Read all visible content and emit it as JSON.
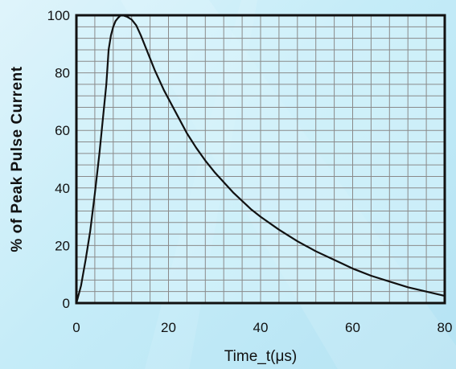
{
  "chart_data": {
    "type": "line",
    "title": "",
    "xlabel": "Time_t(μs)",
    "ylabel": "% of Peak Pulse Current",
    "xlim": [
      0,
      80
    ],
    "ylim": [
      0,
      100
    ],
    "x_ticks": [
      0,
      20,
      40,
      60,
      80
    ],
    "y_ticks": [
      0,
      20,
      40,
      60,
      80,
      100
    ],
    "x_tick_labels": [
      "0",
      "20",
      "40",
      "60",
      "80"
    ],
    "y_tick_labels": [
      "0",
      "20",
      "40",
      "60",
      "80",
      "100"
    ],
    "grid": true,
    "colors": {
      "curve": "#111111",
      "grid": "#8a8a8a",
      "background": "#c5ecf8"
    },
    "series": [
      {
        "x": [
          0,
          1,
          2,
          3,
          4,
          5,
          6,
          6.5,
          7,
          7.5,
          8,
          8.5,
          9,
          9.5,
          10,
          11,
          12,
          13,
          14,
          15,
          16,
          17,
          18,
          19,
          20,
          22,
          24,
          26,
          28,
          30,
          32,
          34,
          36,
          38,
          40,
          44,
          48,
          52,
          56,
          60,
          64,
          68,
          72,
          76,
          80
        ],
        "y": [
          0,
          6,
          15,
          25,
          38,
          52,
          68,
          76,
          88,
          93,
          96,
          98,
          99,
          99.8,
          100,
          99.5,
          98.5,
          96.5,
          93,
          89,
          85,
          81,
          77.5,
          74,
          71,
          65,
          59,
          54,
          49.5,
          45.5,
          42,
          38.5,
          35.5,
          32.5,
          30,
          25.5,
          21.5,
          18,
          15,
          12,
          9.5,
          7.5,
          5.5,
          4,
          2.5
        ]
      }
    ]
  }
}
